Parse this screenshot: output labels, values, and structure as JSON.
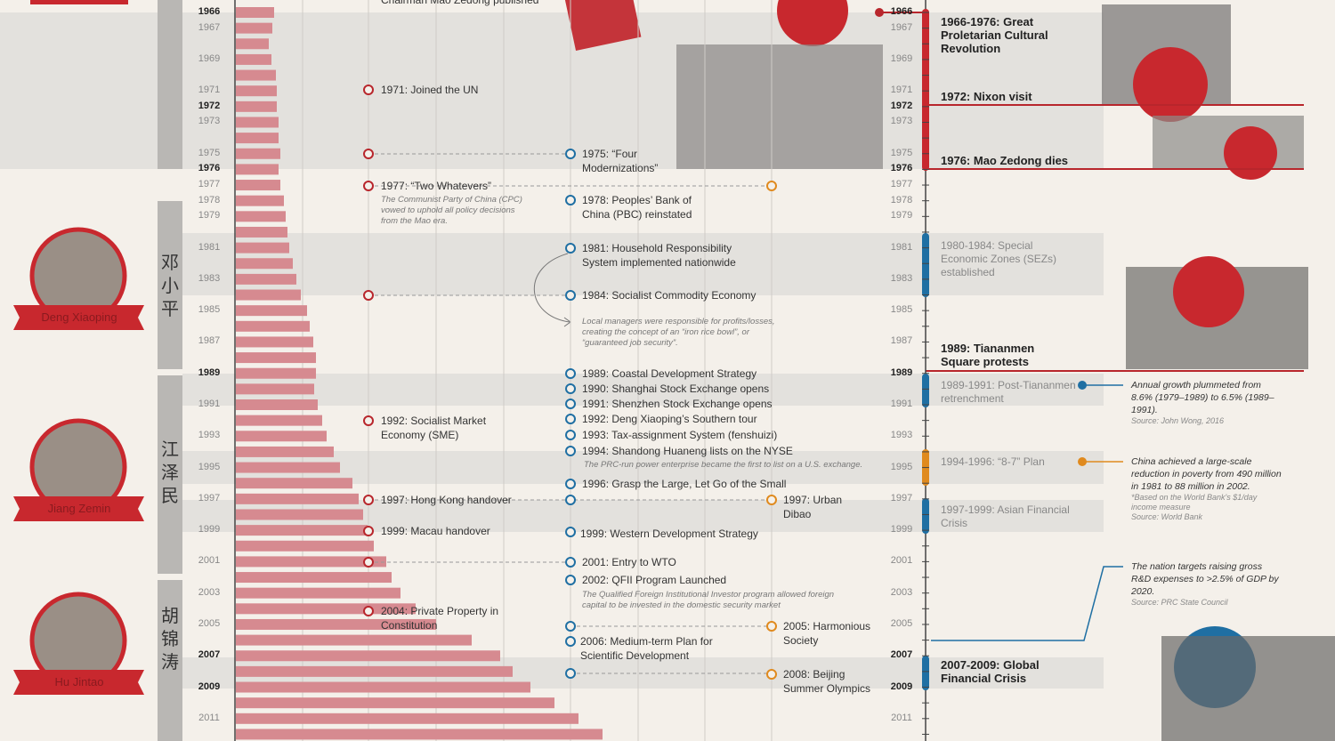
{
  "timeline": {
    "years": [
      1966,
      1967,
      null,
      1969,
      null,
      1971,
      1972,
      1973,
      null,
      1975,
      1976,
      1977,
      1978,
      1979,
      null,
      1981,
      null,
      1983,
      null,
      1985,
      null,
      1987,
      null,
      1989,
      null,
      1991,
      null,
      1993,
      null,
      1995,
      null,
      1997,
      null,
      1999,
      null,
      2001,
      null,
      2003,
      null,
      2005,
      null,
      2007,
      null,
      2009,
      null,
      2011,
      null
    ],
    "bold": [
      true,
      false,
      false,
      false,
      false,
      false,
      true,
      false,
      false,
      false,
      true,
      false,
      false,
      false,
      false,
      false,
      false,
      false,
      false,
      false,
      false,
      false,
      false,
      true,
      false,
      false,
      false,
      false,
      false,
      false,
      false,
      false,
      false,
      false,
      false,
      false,
      false,
      false,
      false,
      false,
      false,
      true,
      false,
      true,
      false,
      false,
      false
    ],
    "bar_values": [
      43,
      41,
      37,
      40,
      45,
      46,
      46,
      48,
      48,
      50,
      48,
      50,
      54,
      56,
      58,
      60,
      64,
      68,
      73,
      80,
      83,
      87,
      90,
      90,
      88,
      92,
      97,
      102,
      110,
      117,
      131,
      138,
      143,
      148,
      155,
      169,
      175,
      185,
      202,
      225,
      265,
      297,
      311,
      331,
      358,
      385,
      412
    ],
    "bar_color": "#d68a90"
  },
  "leaders": [
    {
      "name": "Deng Xiaoping",
      "chinese": "邓小平"
    },
    {
      "name": "Jiang Zemin",
      "chinese": "江泽民"
    },
    {
      "name": "Hu Jintao",
      "chinese": "胡锦涛"
    }
  ],
  "events": [
    {
      "text": "Chairman Mao Zedong published"
    },
    {
      "text": "1971: Joined the UN"
    },
    {
      "text": "1977: “Two Whatevers”",
      "note": "The Communist Party of China (CPC) vowed to uphold all policy decisions from the Mao era."
    },
    {
      "text": "1992: Socialist Market Economy (SME)"
    },
    {
      "text": "1997: Hong Kong handover"
    },
    {
      "text": "1999: Macau handover"
    },
    {
      "text": "2004: Private Property in Constitution"
    },
    {
      "text": "1975: “Four Modernizations”"
    },
    {
      "text": "1978: Peoples’ Bank of China (PBC) reinstated"
    },
    {
      "text": "1981: Household Responsibility System implemented nationwide"
    },
    {
      "text": "1984: Socialist Commodity Economy",
      "note": "Local managers were responsible for profits/losses, creating the concept of an “iron rice bowl”, or “guaranteed job security”."
    },
    {
      "text": "1989: Coastal Development Strategy"
    },
    {
      "text": "1990: Shanghai Stock Exchange opens"
    },
    {
      "text": "1991: Shenzhen Stock Exchange opens"
    },
    {
      "text": "1992: Deng Xiaoping’s Southern tour"
    },
    {
      "text": "1993: Tax-assignment System (fenshuizi)"
    },
    {
      "text": "1994: Shandong Huaneng lists on the NYSE",
      "note": "The PRC-run power enterprise became the first to list on a U.S. exchange."
    },
    {
      "text": "1996: Grasp the Large, Let Go of the Small"
    },
    {
      "text": "1999: Western Development Strategy"
    },
    {
      "text": "2001: Entry to WTO"
    },
    {
      "text": "2002: QFII Program Launched",
      "note": "The Qualified Foreign Institutional Investor program allowed foreign capital to be invested in the domestic security market"
    },
    {
      "text": "2006: Medium-term Plan for Scientific Development"
    },
    {
      "text": "1997: Urban Dibao"
    },
    {
      "text": "2005: Harmonious Society"
    },
    {
      "text": "2008: Beijing Summer Olympics"
    }
  ],
  "eras": [
    {
      "text": "1966-1976: Great Proletarian Cultural Revolution"
    },
    {
      "text": "1972: Nixon visit"
    },
    {
      "text": "1976: Mao Zedong dies"
    },
    {
      "text": "1980-1984: Special Economic Zones (SEZs) established"
    },
    {
      "text": "1989: Tiananmen Square protests"
    },
    {
      "text": "1989-1991: Post-Tiananmen retrenchment"
    },
    {
      "text": "1994-1996: “8-7” Plan"
    },
    {
      "text": "1997-1999: Asian Financial Crisis"
    },
    {
      "text": "2007-2009: Global Financial Crisis"
    }
  ],
  "annotations": [
    {
      "text": "Annual growth plummeted from 8.6% (1979–1989) to 6.5% (1989–1991).",
      "source": "Source: John Wong, 2016"
    },
    {
      "text": "China achieved a large-scale reduction in poverty from 490 million in 1981 to 88 million in 2002.",
      "footnote": "*Based on the World Bank's $1/day income measure",
      "source": "Source: World Bank"
    },
    {
      "text": "The nation targets raising gross R&D expenses to >2.5% of GDP by 2020.",
      "source": "Source: PRC State Council"
    }
  ]
}
